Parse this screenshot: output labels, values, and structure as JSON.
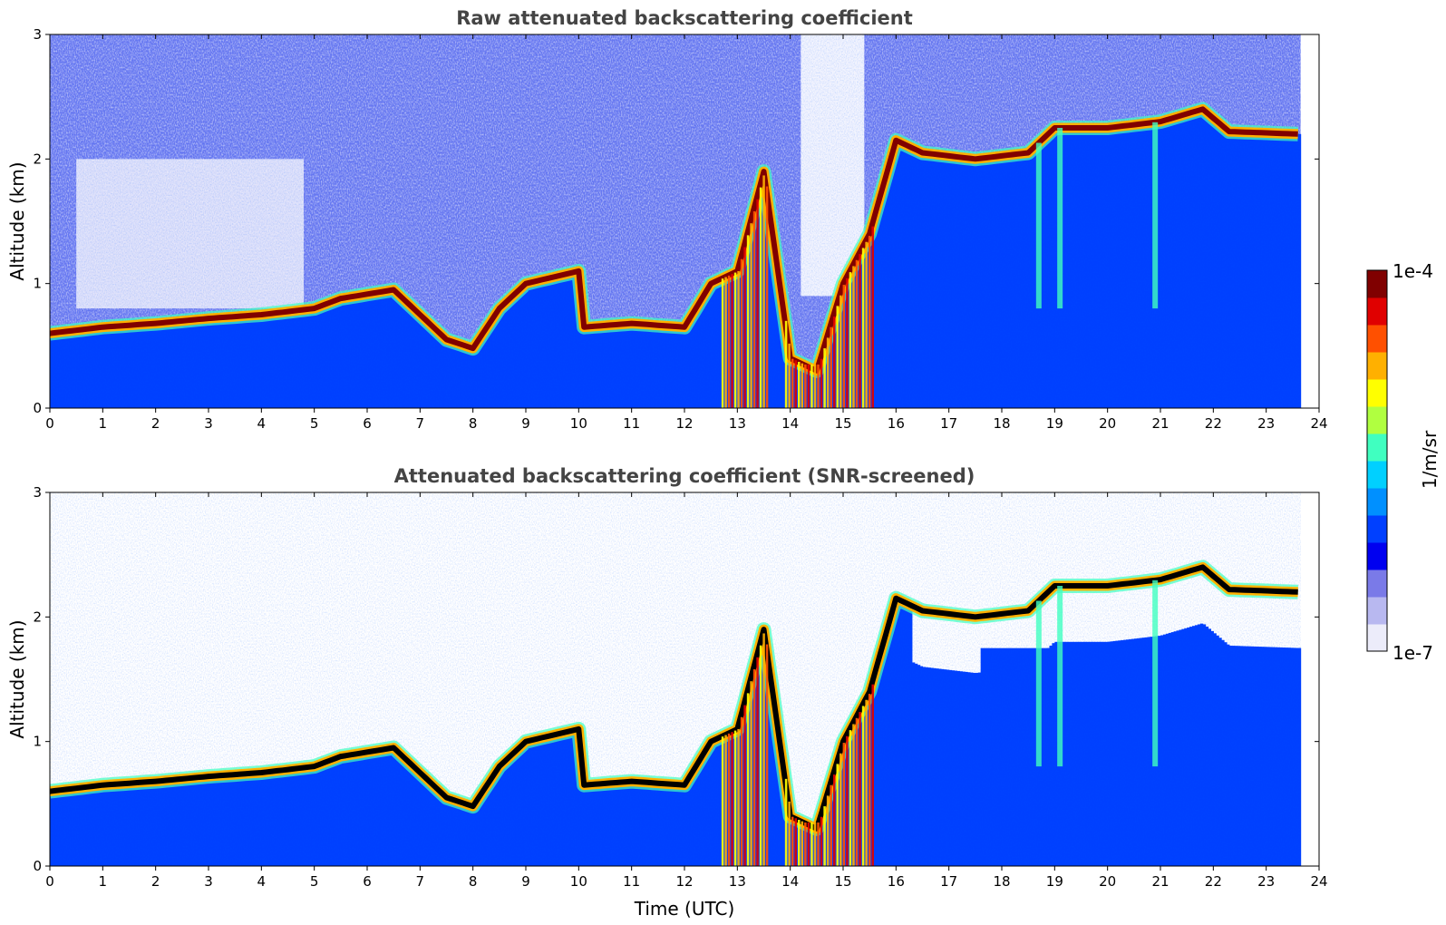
{
  "chart_data": [
    {
      "type": "heatmap",
      "title": "Raw attenuated backscattering coefficient",
      "xlabel": "",
      "ylabel": "Altitude (km)",
      "xlim": [
        0,
        24
      ],
      "ylim": [
        0,
        3
      ],
      "x_ticks": [
        "0",
        "1",
        "2",
        "3",
        "4",
        "5",
        "6",
        "7",
        "8",
        "9",
        "10",
        "11",
        "12",
        "13",
        "14",
        "15",
        "16",
        "17",
        "18",
        "19",
        "20",
        "21",
        "22",
        "23",
        "24"
      ],
      "y_ticks": [
        "0",
        "1",
        "2",
        "3"
      ],
      "data_end_time": 23.65,
      "grid": false,
      "layer_height_km": [
        [
          0.0,
          0.6
        ],
        [
          1.0,
          0.65
        ],
        [
          2.0,
          0.68
        ],
        [
          3.0,
          0.72
        ],
        [
          4.0,
          0.75
        ],
        [
          5.0,
          0.8
        ],
        [
          5.5,
          0.88
        ],
        [
          6.5,
          0.95
        ],
        [
          7.5,
          0.55
        ],
        [
          8.0,
          0.48
        ],
        [
          8.5,
          0.8
        ],
        [
          9.0,
          1.0
        ],
        [
          10.0,
          1.1
        ],
        [
          10.1,
          0.65
        ],
        [
          11.0,
          0.68
        ],
        [
          12.0,
          0.65
        ],
        [
          12.5,
          1.0
        ],
        [
          13.0,
          1.1
        ],
        [
          13.5,
          1.9
        ],
        [
          14.0,
          0.4
        ],
        [
          14.5,
          0.3
        ],
        [
          15.0,
          1.0
        ],
        [
          15.5,
          1.4
        ],
        [
          16.0,
          2.15
        ],
        [
          16.5,
          2.05
        ],
        [
          17.5,
          2.0
        ],
        [
          18.5,
          2.05
        ],
        [
          19.0,
          2.25
        ],
        [
          20.0,
          2.25
        ],
        [
          21.0,
          2.3
        ],
        [
          21.8,
          2.4
        ],
        [
          22.3,
          2.22
        ],
        [
          23.65,
          2.2
        ]
      ],
      "convective_columns_utc": [
        [
          12.7,
          13.6
        ],
        [
          13.9,
          15.6
        ]
      ]
    },
    {
      "type": "heatmap",
      "title": "Attenuated backscattering coefficient (SNR-screened)",
      "xlabel": "Time (UTC)",
      "ylabel": "Altitude (km)",
      "xlim": [
        0,
        24
      ],
      "ylim": [
        0,
        3
      ],
      "x_ticks": [
        "0",
        "1",
        "2",
        "3",
        "4",
        "5",
        "6",
        "7",
        "8",
        "9",
        "10",
        "11",
        "12",
        "13",
        "14",
        "15",
        "16",
        "17",
        "18",
        "19",
        "20",
        "21",
        "22",
        "23",
        "24"
      ],
      "y_ticks": [
        "0",
        "1",
        "2",
        "3"
      ],
      "data_end_time": 23.65,
      "grid": false
    }
  ],
  "colorbar": {
    "label": "1/m/sr",
    "max_label": "1e-4",
    "min_label": "1e-7",
    "scale": "log",
    "colors": [
      "#ececfa",
      "#b8b8f0",
      "#7a7ae8",
      "#0000f0",
      "#0040ff",
      "#0090ff",
      "#00d0ff",
      "#40ffc0",
      "#b0ff40",
      "#ffff00",
      "#ffb000",
      "#ff5000",
      "#e00000",
      "#800000"
    ]
  }
}
